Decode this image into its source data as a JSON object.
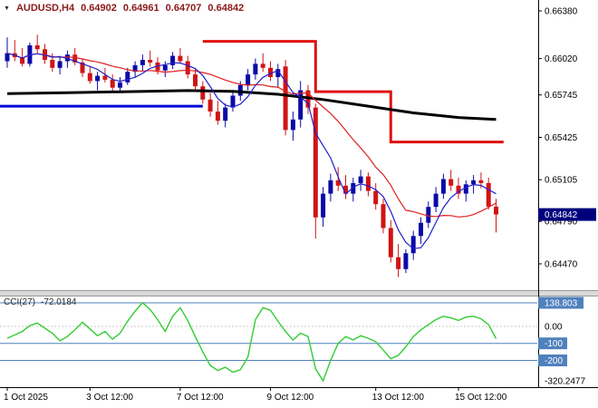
{
  "header": {
    "symbol": "AUDUSD,H4",
    "open": "0.64902",
    "high": "0.64961",
    "low": "0.64707",
    "close": "0.64842"
  },
  "indicator": {
    "name": "CCI(27)",
    "value": "-72.0184"
  },
  "price_tag": "0.64842",
  "colors": {
    "bull": "#0a0aa8",
    "bear": "#d01414",
    "ma_fast": "#2020cc",
    "ma_slow": "#e02020",
    "ma_long": "#000000",
    "step_line": "#e01010",
    "hline": "#0000d8",
    "cci_line": "#33cc33",
    "level_blue": "#4f81bd",
    "axis_text": "#000000",
    "price_tag_bg": "#00007d",
    "separator": "#d9d9d9"
  },
  "chart_data": {
    "type": "candlestick",
    "title": "AUDUSD H4",
    "candles": [
      [
        0.66,
        0.6618,
        0.6595,
        0.6606
      ],
      [
        0.6606,
        0.6616,
        0.66,
        0.6603
      ],
      [
        0.6603,
        0.661,
        0.6596,
        0.6598
      ],
      [
        0.6598,
        0.6614,
        0.6596,
        0.6612
      ],
      [
        0.6612,
        0.662,
        0.6606,
        0.6609
      ],
      [
        0.6609,
        0.6613,
        0.6598,
        0.6601
      ],
      [
        0.6601,
        0.6606,
        0.6592,
        0.6595
      ],
      [
        0.6595,
        0.6604,
        0.659,
        0.66
      ],
      [
        0.66,
        0.6608,
        0.6595,
        0.6605
      ],
      [
        0.6605,
        0.661,
        0.6597,
        0.6599
      ],
      [
        0.6599,
        0.6602,
        0.6588,
        0.6591
      ],
      [
        0.6591,
        0.6596,
        0.6583,
        0.6585
      ],
      [
        0.6585,
        0.6592,
        0.6578,
        0.6589
      ],
      [
        0.6589,
        0.6595,
        0.6584,
        0.6586
      ],
      [
        0.6586,
        0.659,
        0.6577,
        0.658
      ],
      [
        0.658,
        0.6588,
        0.6576,
        0.6584
      ],
      [
        0.6584,
        0.6595,
        0.6582,
        0.6592
      ],
      [
        0.6592,
        0.66,
        0.6588,
        0.6597
      ],
      [
        0.6597,
        0.6605,
        0.6592,
        0.6601
      ],
      [
        0.6601,
        0.6608,
        0.6596,
        0.6599
      ],
      [
        0.6599,
        0.6603,
        0.659,
        0.6593
      ],
      [
        0.6593,
        0.66,
        0.6588,
        0.6597
      ],
      [
        0.6597,
        0.6607,
        0.6594,
        0.6604
      ],
      [
        0.6604,
        0.661,
        0.6598,
        0.66
      ],
      [
        0.66,
        0.6604,
        0.6587,
        0.659
      ],
      [
        0.659,
        0.6594,
        0.6578,
        0.6581
      ],
      [
        0.6581,
        0.6585,
        0.6568,
        0.6571
      ],
      [
        0.6571,
        0.6576,
        0.6558,
        0.6562
      ],
      [
        0.6562,
        0.657,
        0.6552,
        0.6555
      ],
      [
        0.6555,
        0.6568,
        0.655,
        0.6565
      ],
      [
        0.6565,
        0.6578,
        0.6562,
        0.6574
      ],
      [
        0.6574,
        0.6585,
        0.657,
        0.6582
      ],
      [
        0.6582,
        0.6594,
        0.6578,
        0.659
      ],
      [
        0.659,
        0.6602,
        0.6586,
        0.6598
      ],
      [
        0.6598,
        0.6606,
        0.6592,
        0.6595
      ],
      [
        0.6595,
        0.66,
        0.6585,
        0.6588
      ],
      [
        0.6588,
        0.6598,
        0.658,
        0.6594
      ],
      [
        0.6596,
        0.6601,
        0.6544,
        0.6548
      ],
      [
        0.6548,
        0.6562,
        0.654,
        0.6556
      ],
      [
        0.6556,
        0.6585,
        0.655,
        0.6578
      ],
      [
        0.6578,
        0.6582,
        0.656,
        0.6565
      ],
      [
        0.6565,
        0.6568,
        0.6466,
        0.6482
      ],
      [
        0.6482,
        0.6505,
        0.6475,
        0.65
      ],
      [
        0.65,
        0.6515,
        0.6494,
        0.651
      ],
      [
        0.651,
        0.652,
        0.6502,
        0.6506
      ],
      [
        0.6506,
        0.6514,
        0.6496,
        0.65
      ],
      [
        0.65,
        0.6512,
        0.6494,
        0.6508
      ],
      [
        0.6508,
        0.6518,
        0.6502,
        0.6513
      ],
      [
        0.6513,
        0.6516,
        0.6498,
        0.6502
      ],
      [
        0.6502,
        0.6508,
        0.6488,
        0.6492
      ],
      [
        0.6492,
        0.6496,
        0.647,
        0.6474
      ],
      [
        0.6474,
        0.648,
        0.6448,
        0.6452
      ],
      [
        0.6452,
        0.6462,
        0.6437,
        0.6443
      ],
      [
        0.6443,
        0.6458,
        0.644,
        0.6455
      ],
      [
        0.6455,
        0.6472,
        0.645,
        0.6468
      ],
      [
        0.6468,
        0.6482,
        0.6462,
        0.6478
      ],
      [
        0.6478,
        0.6494,
        0.6474,
        0.649
      ],
      [
        0.649,
        0.6505,
        0.6486,
        0.65
      ],
      [
        0.65,
        0.6515,
        0.6496,
        0.6511
      ],
      [
        0.6511,
        0.6518,
        0.6502,
        0.6506
      ],
      [
        0.6506,
        0.6512,
        0.6496,
        0.65
      ],
      [
        0.65,
        0.651,
        0.6494,
        0.6507
      ],
      [
        0.6507,
        0.6514,
        0.65,
        0.651
      ],
      [
        0.651,
        0.6516,
        0.6504,
        0.6508
      ],
      [
        0.6508,
        0.6512,
        0.6488,
        0.64902
      ],
      [
        0.64902,
        0.64961,
        0.64707,
        0.64842
      ]
    ],
    "price_axis": {
      "labels": [
        0.6638,
        0.6602,
        0.65745,
        0.65425,
        0.65105,
        0.6479,
        0.6447
      ]
    },
    "time_labels": [
      {
        "bar": 0,
        "label": "1 Oct 2025"
      },
      {
        "bar": 11,
        "label": "3 Oct 12:00"
      },
      {
        "bar": 23,
        "label": "7 Oct 12:00"
      },
      {
        "bar": 35,
        "label": "9 Oct 12:00"
      },
      {
        "bar": 49,
        "label": "13 Oct 12:00"
      },
      {
        "bar": 60,
        "label": "15 Oct 12:00"
      }
    ],
    "overlays": {
      "support_line": {
        "price": 0.6566,
        "to_bar": 26
      },
      "resistance_step": {
        "points": [
          [
            26,
            0.6615
          ],
          [
            41,
            0.6615
          ],
          [
            41,
            0.6577
          ],
          [
            51,
            0.6577
          ],
          [
            51,
            0.6539
          ],
          [
            66,
            0.6539
          ]
        ]
      },
      "ma_long": {
        "points": [
          [
            0,
            0.65755
          ],
          [
            8,
            0.65762
          ],
          [
            16,
            0.6577
          ],
          [
            24,
            0.65778
          ],
          [
            30,
            0.65772
          ],
          [
            36,
            0.6575
          ],
          [
            42,
            0.6571
          ],
          [
            48,
            0.6566
          ],
          [
            54,
            0.6561
          ],
          [
            60,
            0.65575
          ],
          [
            65,
            0.6556
          ]
        ]
      }
    },
    "cci": {
      "period": 27,
      "current": -72.0184,
      "values": [
        -70,
        -50,
        -30,
        5,
        20,
        -10,
        -40,
        -85,
        -60,
        -20,
        25,
        -15,
        -55,
        -30,
        -75,
        -40,
        30,
        90,
        138.803,
        100,
        40,
        -30,
        60,
        110,
        35,
        -60,
        -150,
        -230,
        -260,
        -240,
        -270,
        -255,
        -180,
        40,
        110,
        95,
        30,
        -30,
        -80,
        -40,
        -60,
        -250,
        -320.2477,
        -200,
        -100,
        -60,
        -80,
        -55,
        -70,
        -90,
        -140,
        -190,
        -170,
        -120,
        -60,
        -20,
        10,
        40,
        60,
        50,
        35,
        55,
        60,
        45,
        10,
        -72.0184
      ],
      "levels": [
        {
          "value": 138.803,
          "label": "138.803",
          "boxed": true,
          "line": "blue"
        },
        {
          "value": 0,
          "label": "0.00",
          "boxed": false,
          "line": "dotted"
        },
        {
          "value": -100,
          "label": "-100",
          "boxed": true,
          "line": "blue"
        },
        {
          "value": -200,
          "label": "-200",
          "boxed": true,
          "line": "blue"
        },
        {
          "value": -320.2477,
          "label": "-320.2477",
          "boxed": false,
          "line": "none"
        }
      ]
    }
  }
}
